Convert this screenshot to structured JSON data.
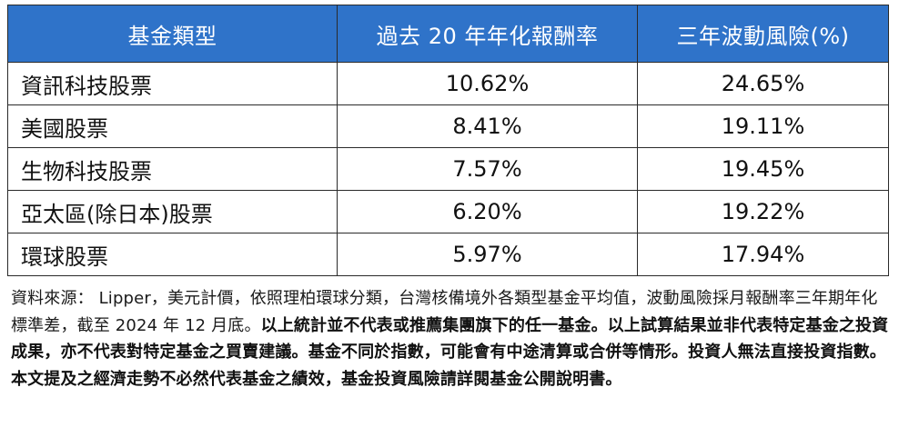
{
  "table": {
    "headers": [
      "基金類型",
      "過去 20 年年化報酬率",
      "三年波動風險(%)"
    ],
    "rows": [
      {
        "type": "資訊科技股票",
        "return_20y": "10.62%",
        "volatility_3y": "24.65%"
      },
      {
        "type": "美國股票",
        "return_20y": "8.41%",
        "volatility_3y": "19.11%"
      },
      {
        "type": "生物科技股票",
        "return_20y": "7.57%",
        "volatility_3y": "19.45%"
      },
      {
        "type": "亞太區(除日本)股票",
        "return_20y": "6.20%",
        "volatility_3y": "19.22%"
      },
      {
        "type": "環球股票",
        "return_20y": "5.97%",
        "volatility_3y": "17.94%"
      }
    ],
    "colors": {
      "header_bg": "#2f73c9",
      "header_text": "#ffffff",
      "border": "#2a2a2a"
    }
  },
  "footnote": {
    "source_text": "資料來源： Lipper，美元計價，依照理柏環球分類，台灣核備境外各類型基金平均值，波動風險採月報酬率三年期年化標準差，截至 2024 年 12 月底。",
    "disclaimer_text": "以上統計並不代表或推薦集團旗下的任一基金。以上試算結果並非代表特定基金之投資成果，亦不代表對特定基金之買賣建議。基金不同於指數，可能會有中途清算或合併等情形。投資人無法直接投資指數。本文提及之經濟走勢不必然代表基金之績效，基金投資風險請詳閱基金公開說明書。"
  }
}
